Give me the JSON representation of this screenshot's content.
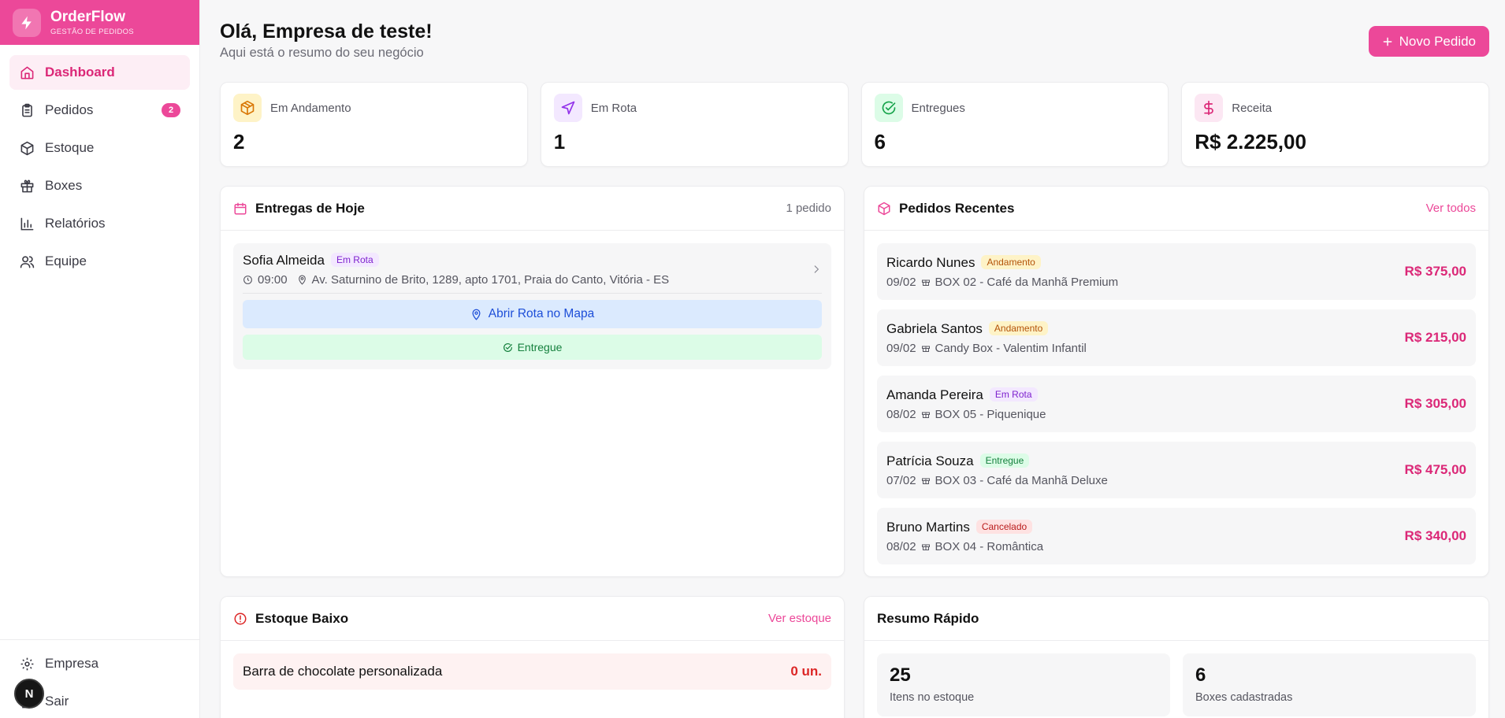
{
  "brand": {
    "title": "OrderFlow",
    "subtitle": "GESTÃO DE PEDIDOS"
  },
  "nav": [
    {
      "label": "Dashboard",
      "icon": "home-icon",
      "active": true
    },
    {
      "label": "Pedidos",
      "icon": "clipboard-icon",
      "badge": "2"
    },
    {
      "label": "Estoque",
      "icon": "package-icon"
    },
    {
      "label": "Boxes",
      "icon": "gift-icon"
    },
    {
      "label": "Relatórios",
      "icon": "bar-chart-icon"
    },
    {
      "label": "Equipe",
      "icon": "users-icon"
    }
  ],
  "nav_bottom": [
    {
      "label": "Empresa",
      "icon": "gear-icon"
    },
    {
      "label": "Sair",
      "icon": "logout-icon"
    }
  ],
  "avatar_letter": "N",
  "header": {
    "greeting": "Olá, Empresa de teste!",
    "subtitle": "Aqui está o resumo do seu negócio",
    "new_order": "Novo Pedido"
  },
  "stats": [
    {
      "label": "Em Andamento",
      "value": "2",
      "icon": "package-icon",
      "color": "#d97706",
      "bg": "#fef3c7"
    },
    {
      "label": "Em Rota",
      "value": "1",
      "icon": "navigation-icon",
      "color": "#9333ea",
      "bg": "#f3e8ff"
    },
    {
      "label": "Entregues",
      "value": "6",
      "icon": "check-circle-icon",
      "color": "#16a34a",
      "bg": "#dcfce7"
    },
    {
      "label": "Receita",
      "value": "R$ 2.225,00",
      "icon": "dollar-icon",
      "color": "#db2777",
      "bg": "#fce7f3"
    }
  ],
  "today": {
    "title": "Entregas de Hoje",
    "count": "1 pedido",
    "delivery": {
      "name": "Sofia Almeida",
      "status": "Em Rota",
      "time": "09:00",
      "address": "Av. Saturnino de Brito, 1289, apto 1701, Praia do Canto, Vitória - ES",
      "map_button": "Abrir Rota no Mapa",
      "done_button": "Entregue"
    }
  },
  "recent": {
    "title": "Pedidos Recentes",
    "link": "Ver todos",
    "orders": [
      {
        "name": "Ricardo Nunes",
        "status": "Andamento",
        "date": "09/02",
        "box": "BOX 02 - Café da Manhã Premium",
        "price": "R$ 375,00"
      },
      {
        "name": "Gabriela Santos",
        "status": "Andamento",
        "date": "09/02",
        "box": "Candy Box - Valentim Infantil",
        "price": "R$ 215,00"
      },
      {
        "name": "Amanda Pereira",
        "status": "Em Rota",
        "date": "08/02",
        "box": "BOX 05 - Piquenique",
        "price": "R$ 305,00"
      },
      {
        "name": "Patrícia Souza",
        "status": "Entregue",
        "date": "07/02",
        "box": "BOX 03 - Café da Manhã Deluxe",
        "price": "R$ 475,00"
      },
      {
        "name": "Bruno Martins",
        "status": "Cancelado",
        "date": "08/02",
        "box": "BOX 04 - Romântica",
        "price": "R$ 340,00"
      }
    ]
  },
  "low_stock": {
    "title": "Estoque Baixo",
    "link": "Ver estoque",
    "item": {
      "name": "Barra de chocolate personalizada",
      "qty": "0 un."
    }
  },
  "summary": {
    "title": "Resumo Rápido",
    "boxes": [
      {
        "value": "25",
        "label": "Itens no estoque"
      },
      {
        "value": "6",
        "label": "Boxes cadastradas"
      }
    ]
  }
}
